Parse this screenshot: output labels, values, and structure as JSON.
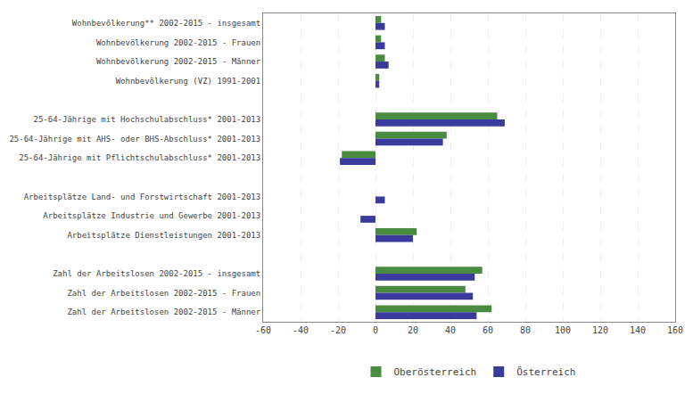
{
  "chart_data": {
    "type": "bar",
    "orientation": "horizontal",
    "categories": [
      "Wohnbevölkerung** 2002-2015 - insgesamt",
      "Wohnbevölkerung 2002-2015 - Frauen",
      "Wohnbevölkerung 2002-2015 - Männer",
      "Wohnbevölkerung (VZ) 1991-2001",
      null,
      "25-64-Jährige mit Hochschulabschluss* 2001-2013",
      "25-64-Jährige mit AHS- oder BHS-Abschluss* 2001-2013",
      "25-64-Jährige mit Pflichtschulabschluss* 2001-2013",
      null,
      "Arbeitsplätze Land- und Forstwirtschaft 2001-2013",
      "Arbeitsplätze Industrie und Gewerbe 2001-2013",
      "Arbeitsplätze Dienstleistungen 2001-2013",
      null,
      "Zahl der Arbeitslosen 2002-2015 - insgesamt",
      "Zahl der Arbeitslosen 2002-2015 - Frauen",
      "Zahl der Arbeitslosen 2002-2015 - Männer"
    ],
    "series": [
      {
        "name": "Oberösterreich",
        "color": "#4a8c3f",
        "values": [
          3,
          3,
          5,
          2,
          null,
          65,
          38,
          -18,
          null,
          0,
          0,
          22,
          null,
          57,
          48,
          62
        ]
      },
      {
        "name": "Österreich",
        "color": "#3b3b9e",
        "values": [
          5,
          5,
          7,
          2,
          null,
          69,
          36,
          -19,
          null,
          5,
          -8,
          20,
          null,
          53,
          52,
          54
        ]
      }
    ],
    "xlim": [
      -60,
      160
    ],
    "xticks": [
      -60,
      -40,
      -20,
      0,
      20,
      40,
      60,
      80,
      100,
      120,
      140,
      160
    ],
    "grid": true,
    "legend": "bottom"
  }
}
